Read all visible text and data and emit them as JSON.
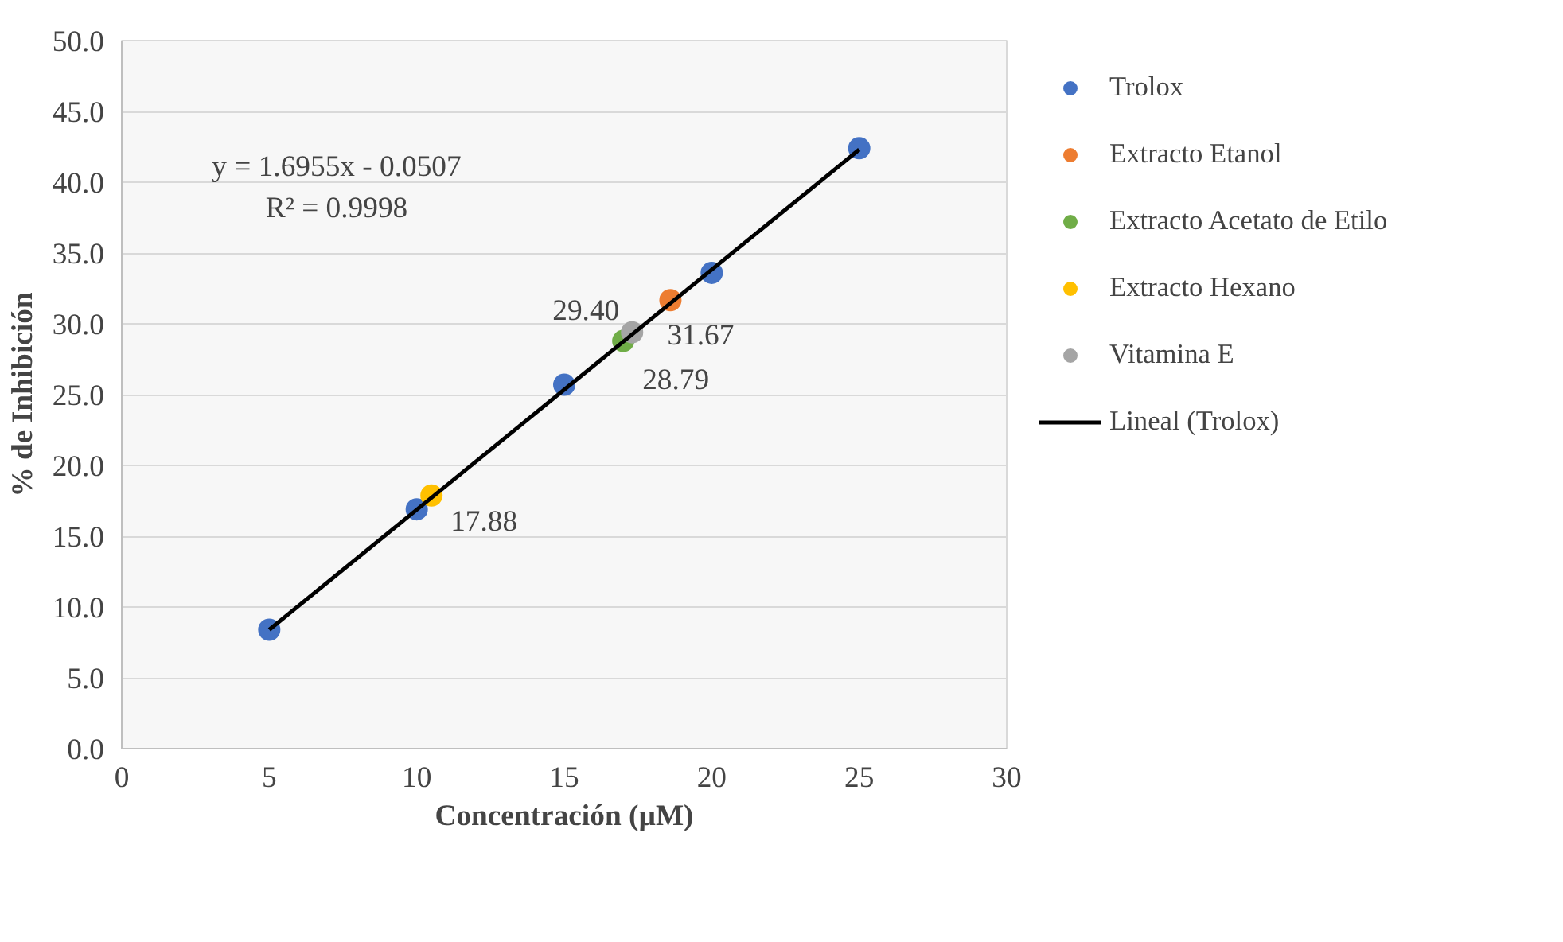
{
  "chart_data": {
    "type": "scatter",
    "xlabel": "Concentración (µM)",
    "ylabel": "% de Inhibición",
    "xlim": [
      0,
      30
    ],
    "xticks": [
      0,
      5,
      10,
      15,
      20,
      25,
      30
    ],
    "ylim": [
      0,
      50
    ],
    "yticks": [
      {
        "value": 0,
        "label": "0.0"
      },
      {
        "value": 5,
        "label": "5.0"
      },
      {
        "value": 10,
        "label": "10.0"
      },
      {
        "value": 15,
        "label": "15.0"
      },
      {
        "value": 20,
        "label": "20.0"
      },
      {
        "value": 25,
        "label": "25.0"
      },
      {
        "value": 30,
        "label": "30.0"
      },
      {
        "value": 35,
        "label": "35.0"
      },
      {
        "value": 40,
        "label": "40.0"
      },
      {
        "value": 45,
        "label": "45.0"
      },
      {
        "value": 50,
        "label": "50.0"
      }
    ],
    "grid": "y",
    "legend": "right",
    "marker": "circle",
    "series": [
      {
        "name": "Trolox",
        "color": "#4472c4",
        "x": [
          5,
          10,
          15,
          20,
          25
        ],
        "values": [
          8.4,
          16.9,
          25.7,
          33.6,
          42.4
        ]
      },
      {
        "name": "Extracto Etanol",
        "color": "#ed7d31",
        "x": [
          18.6
        ],
        "values": [
          31.67
        ],
        "value_labels": [
          "31.67"
        ]
      },
      {
        "name": "Extracto Acetato de Etilo",
        "color": "#70ad47",
        "x": [
          17.0
        ],
        "values": [
          28.79
        ],
        "value_labels": [
          "28.79"
        ]
      },
      {
        "name": "Extracto Hexano",
        "color": "#ffc000",
        "x": [
          10.5
        ],
        "values": [
          17.88
        ],
        "value_labels": [
          "17.88"
        ]
      },
      {
        "name": "Vitamina E",
        "color": "#a5a5a5",
        "x": [
          17.3
        ],
        "values": [
          29.4
        ],
        "value_labels": [
          "29.40"
        ]
      },
      {
        "name": "Lineal (Trolox)",
        "type": "line",
        "marker": "none",
        "color": "#000000",
        "x": [
          5,
          25
        ],
        "values": [
          8.4,
          42.3
        ]
      }
    ],
    "annotations": [
      "y = 1.6955x - 0.0507",
      "R² = 0.9998"
    ]
  }
}
